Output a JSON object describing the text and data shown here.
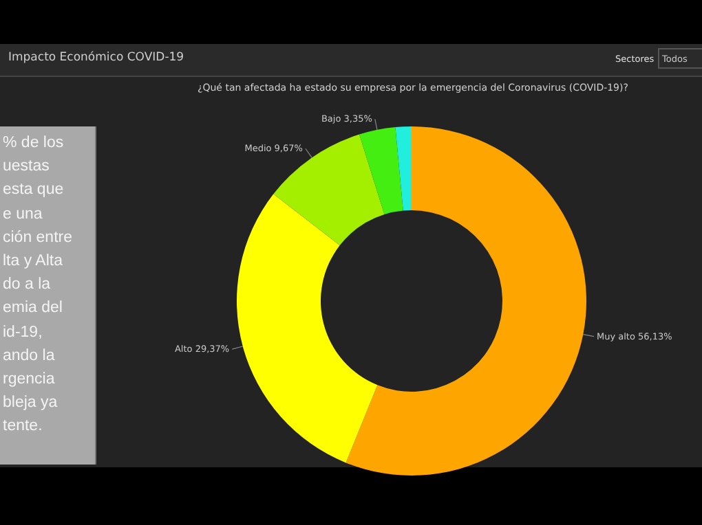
{
  "chart_data": {
    "type": "donut",
    "title": "¿Qué tan afectada ha estado su empresa por la emergencia del Coronavirus (COVID-19)?",
    "subtitle": "Impacto Económico COVID-19",
    "categories": [
      "Muy alto",
      "Alto",
      "Medio",
      "Bajo",
      null
    ],
    "values": [
      56.13,
      29.37,
      9.67,
      3.35,
      1.48
    ],
    "value_labels": [
      "56,13%",
      "29,37%",
      "9,67%",
      "3,35%",
      null
    ],
    "colors": [
      "#ffa500",
      "#ffff00",
      "#a4ee00",
      "#44ee11",
      "#22eedd"
    ],
    "annotations": [
      "Sectores",
      "Todos",
      "% de los\nuestas\nesta que\ne una\nción entre\nlta y Alta\ndo a la\nemia del\nid-19,\nando la\nrgencia\nbleja ya\ntente."
    ]
  }
}
